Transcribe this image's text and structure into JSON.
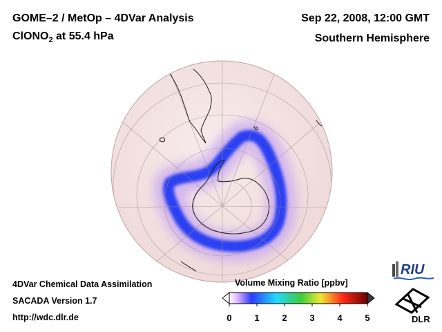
{
  "header": {
    "title_line1": "GOME–2 / MetOp – 4DVar Analysis",
    "species_prefix": "ClONO",
    "species_subscript": "2",
    "species_suffix": " at 55.4 hPa",
    "date": "Sep 22, 2008, 12:00 GMT",
    "hemisphere": "Southern Hemisphere"
  },
  "footer": {
    "line1": "4DVar Chemical Data Assimilation",
    "line2": "SACADA Version 1.7",
    "line3": "http://wdc.dlr.de"
  },
  "colorbar": {
    "title": "Volume Mixing Ratio [ppbv]",
    "ticks": [
      "0",
      "1",
      "2",
      "3",
      "4",
      "5"
    ],
    "min": 0,
    "max": 5
  },
  "logos": {
    "riu": "RIU",
    "dlr": "DLR"
  },
  "colors": {
    "ocean_background": "#f5e3e3",
    "ring_core": "#2a3ff2",
    "ring_halo": "#c6a8f0",
    "coastline": "#1a1a1a"
  }
}
